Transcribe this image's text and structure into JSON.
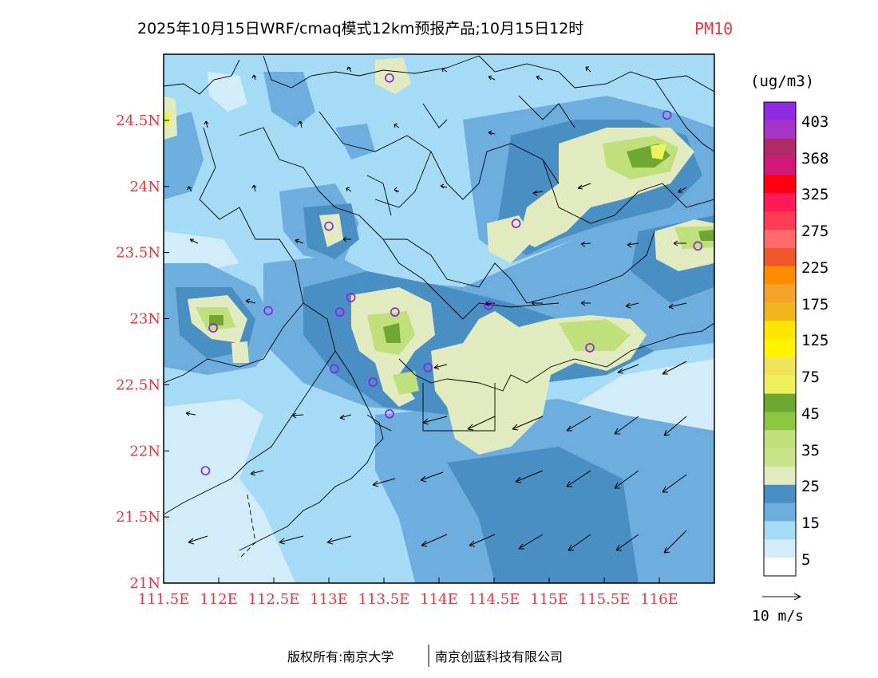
{
  "title": {
    "main": "2025年10月15日WRF/cmaq模式12km预报产品;10月15日12时",
    "pollutant": "PM10"
  },
  "map": {
    "lon_range": [
      111.5,
      116.5
    ],
    "lat_range": [
      21.0,
      25.0
    ],
    "x_ticks": [
      "111.5E",
      "112E",
      "112.5E",
      "113E",
      "113.5E",
      "114E",
      "114.5E",
      "115E",
      "115.5E",
      "116E"
    ],
    "y_ticks": [
      "21N",
      "21.5N",
      "22N",
      "22.5N",
      "23N",
      "23.5N",
      "24N",
      "24.5N"
    ],
    "stations": [
      {
        "lon": 113.55,
        "lat": 24.82
      },
      {
        "lon": 116.07,
        "lat": 24.54
      },
      {
        "lon": 113.0,
        "lat": 23.7
      },
      {
        "lon": 114.7,
        "lat": 23.72
      },
      {
        "lon": 116.35,
        "lat": 23.55
      },
      {
        "lon": 112.45,
        "lat": 23.06
      },
      {
        "lon": 113.1,
        "lat": 23.05
      },
      {
        "lon": 113.2,
        "lat": 23.16
      },
      {
        "lon": 113.6,
        "lat": 23.05
      },
      {
        "lon": 114.45,
        "lat": 23.1
      },
      {
        "lon": 111.95,
        "lat": 22.93
      },
      {
        "lon": 115.37,
        "lat": 22.78
      },
      {
        "lon": 113.05,
        "lat": 22.62
      },
      {
        "lon": 113.9,
        "lat": 22.63
      },
      {
        "lon": 113.4,
        "lat": 22.52
      },
      {
        "lon": 113.55,
        "lat": 22.28
      },
      {
        "lon": 111.88,
        "lat": 21.85
      }
    ]
  },
  "legend": {
    "unit": "(ug/m3)",
    "labels": [
      "403",
      "368",
      "325",
      "275",
      "225",
      "175",
      "125",
      "75",
      "45",
      "35",
      "25",
      "15",
      "5"
    ],
    "colors_top_to_bottom": [
      "#8c2be0",
      "#a535c8",
      "#b02a6a",
      "#d0187a",
      "#ff0010",
      "#ff1a56",
      "#ff3a55",
      "#ff6b6b",
      "#f0582a",
      "#ff8c00",
      "#f5a32a",
      "#f5b51f",
      "#ffe600",
      "#fff300",
      "#f2e45a",
      "#eef25a",
      "#6ea832",
      "#8cc63f",
      "#bfe07a",
      "#c9e38a",
      "#e1ebbf",
      "#4a8fc4",
      "#6eaedf",
      "#a6dbf5",
      "#d3ecfa",
      "#ffffff"
    ],
    "wind_scale": "10 m/s"
  },
  "copyright": {
    "left": "版权所有:南京大学",
    "right": "南京创蓝科技有限公司"
  }
}
